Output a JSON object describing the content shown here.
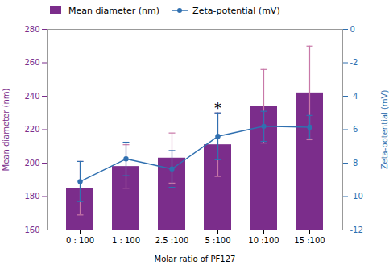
{
  "chart_data": {
    "type": "bar",
    "xlabel": "Molar ratio of PF127",
    "ylabel": "Mean diameter (nm)",
    "y2label": "Zeta-potential (mV)",
    "categories": [
      "0 : 100",
      "1 : 100",
      "2.5 :100",
      "5 :100",
      "10 :100",
      "15 :100"
    ],
    "series": [
      {
        "name": "Mean diameter (nm)",
        "type": "bar",
        "color": "#7B2D8B",
        "values": [
          185,
          198,
          203,
          211,
          234,
          242
        ],
        "errors": [
          16,
          13,
          15,
          19,
          22,
          28
        ],
        "error_color": "#C878A8"
      },
      {
        "name": "Zeta-potential (mV)",
        "type": "line",
        "axis": "y2",
        "color": "#3070B0",
        "marker": "circle",
        "values": [
          -9.1,
          -7.75,
          -8.35,
          -6.4,
          -5.8,
          -5.85
        ],
        "errors": [
          1.2,
          1.0,
          1.1,
          1.4,
          0.9,
          0.7
        ]
      }
    ],
    "ylim": [
      160,
      280
    ],
    "yticks": [
      160,
      180,
      200,
      220,
      240,
      260,
      280
    ],
    "y2lim": [
      -12,
      0
    ],
    "y2ticks": [
      0,
      -2,
      -4,
      -6,
      -8,
      -10,
      -12
    ],
    "legend": "upper left",
    "annotations": [
      {
        "text": "*",
        "x": "5 :100",
        "y": 230
      }
    ]
  }
}
